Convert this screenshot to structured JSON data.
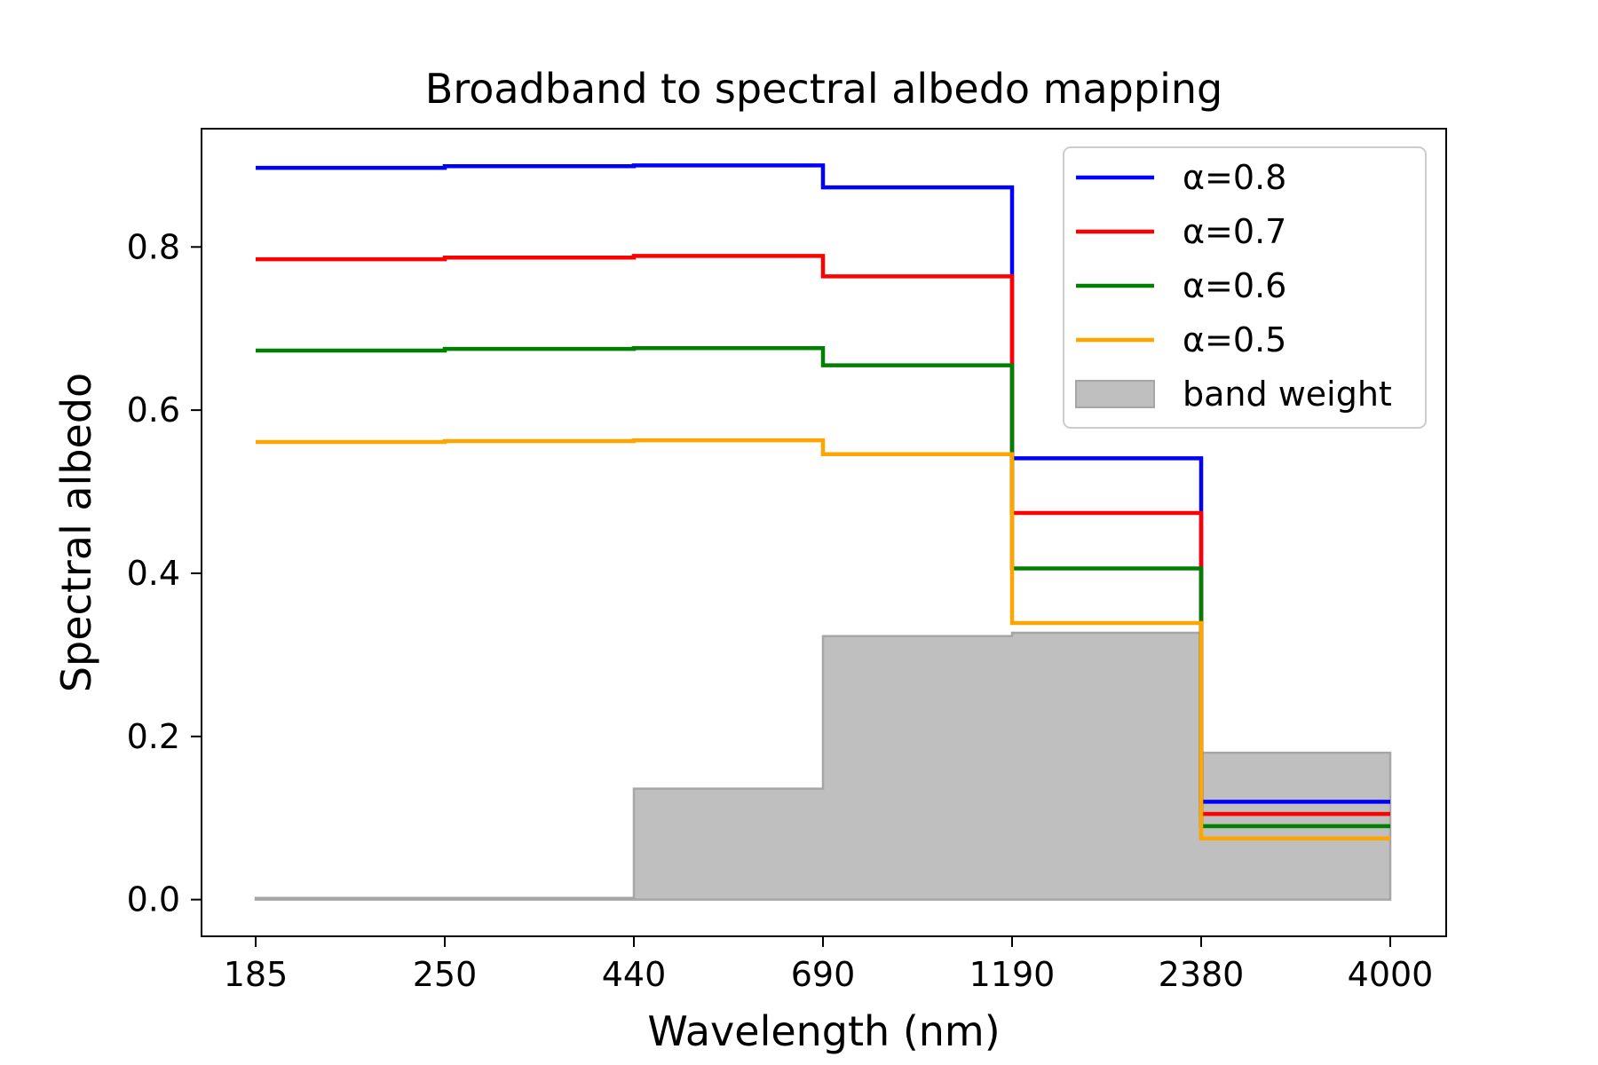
{
  "chart_data": {
    "type": "line",
    "title": "Broadband to spectral albedo mapping",
    "xlabel": "Wavelength (nm)",
    "ylabel": "Spectral albedo",
    "x_ticks": [
      "185",
      "250",
      "440",
      "690",
      "1190",
      "2380",
      "4000"
    ],
    "y_ticks": [
      "0.0",
      "0.2",
      "0.4",
      "0.6",
      "0.8"
    ],
    "ylim": [
      -0.045,
      0.945
    ],
    "grid": false,
    "legend_position": "top-right",
    "series": [
      {
        "name": "α=0.8",
        "color": "#0000ff",
        "values": [
          0.897,
          0.899,
          0.9,
          0.873,
          0.541,
          0.12
        ]
      },
      {
        "name": "α=0.7",
        "color": "#ff0000",
        "values": [
          0.785,
          0.787,
          0.789,
          0.764,
          0.474,
          0.105
        ]
      },
      {
        "name": "α=0.6",
        "color": "#008000",
        "values": [
          0.673,
          0.675,
          0.676,
          0.655,
          0.406,
          0.09
        ]
      },
      {
        "name": "α=0.5",
        "color": "#ffa500",
        "values": [
          0.561,
          0.562,
          0.563,
          0.546,
          0.339,
          0.075
        ]
      }
    ],
    "band_weight": {
      "name": "band weight",
      "color": "#bfbfbf",
      "edge_color": "#a6a6a6",
      "values": [
        0.002,
        0.002,
        0.136,
        0.323,
        0.327,
        0.18
      ]
    }
  }
}
